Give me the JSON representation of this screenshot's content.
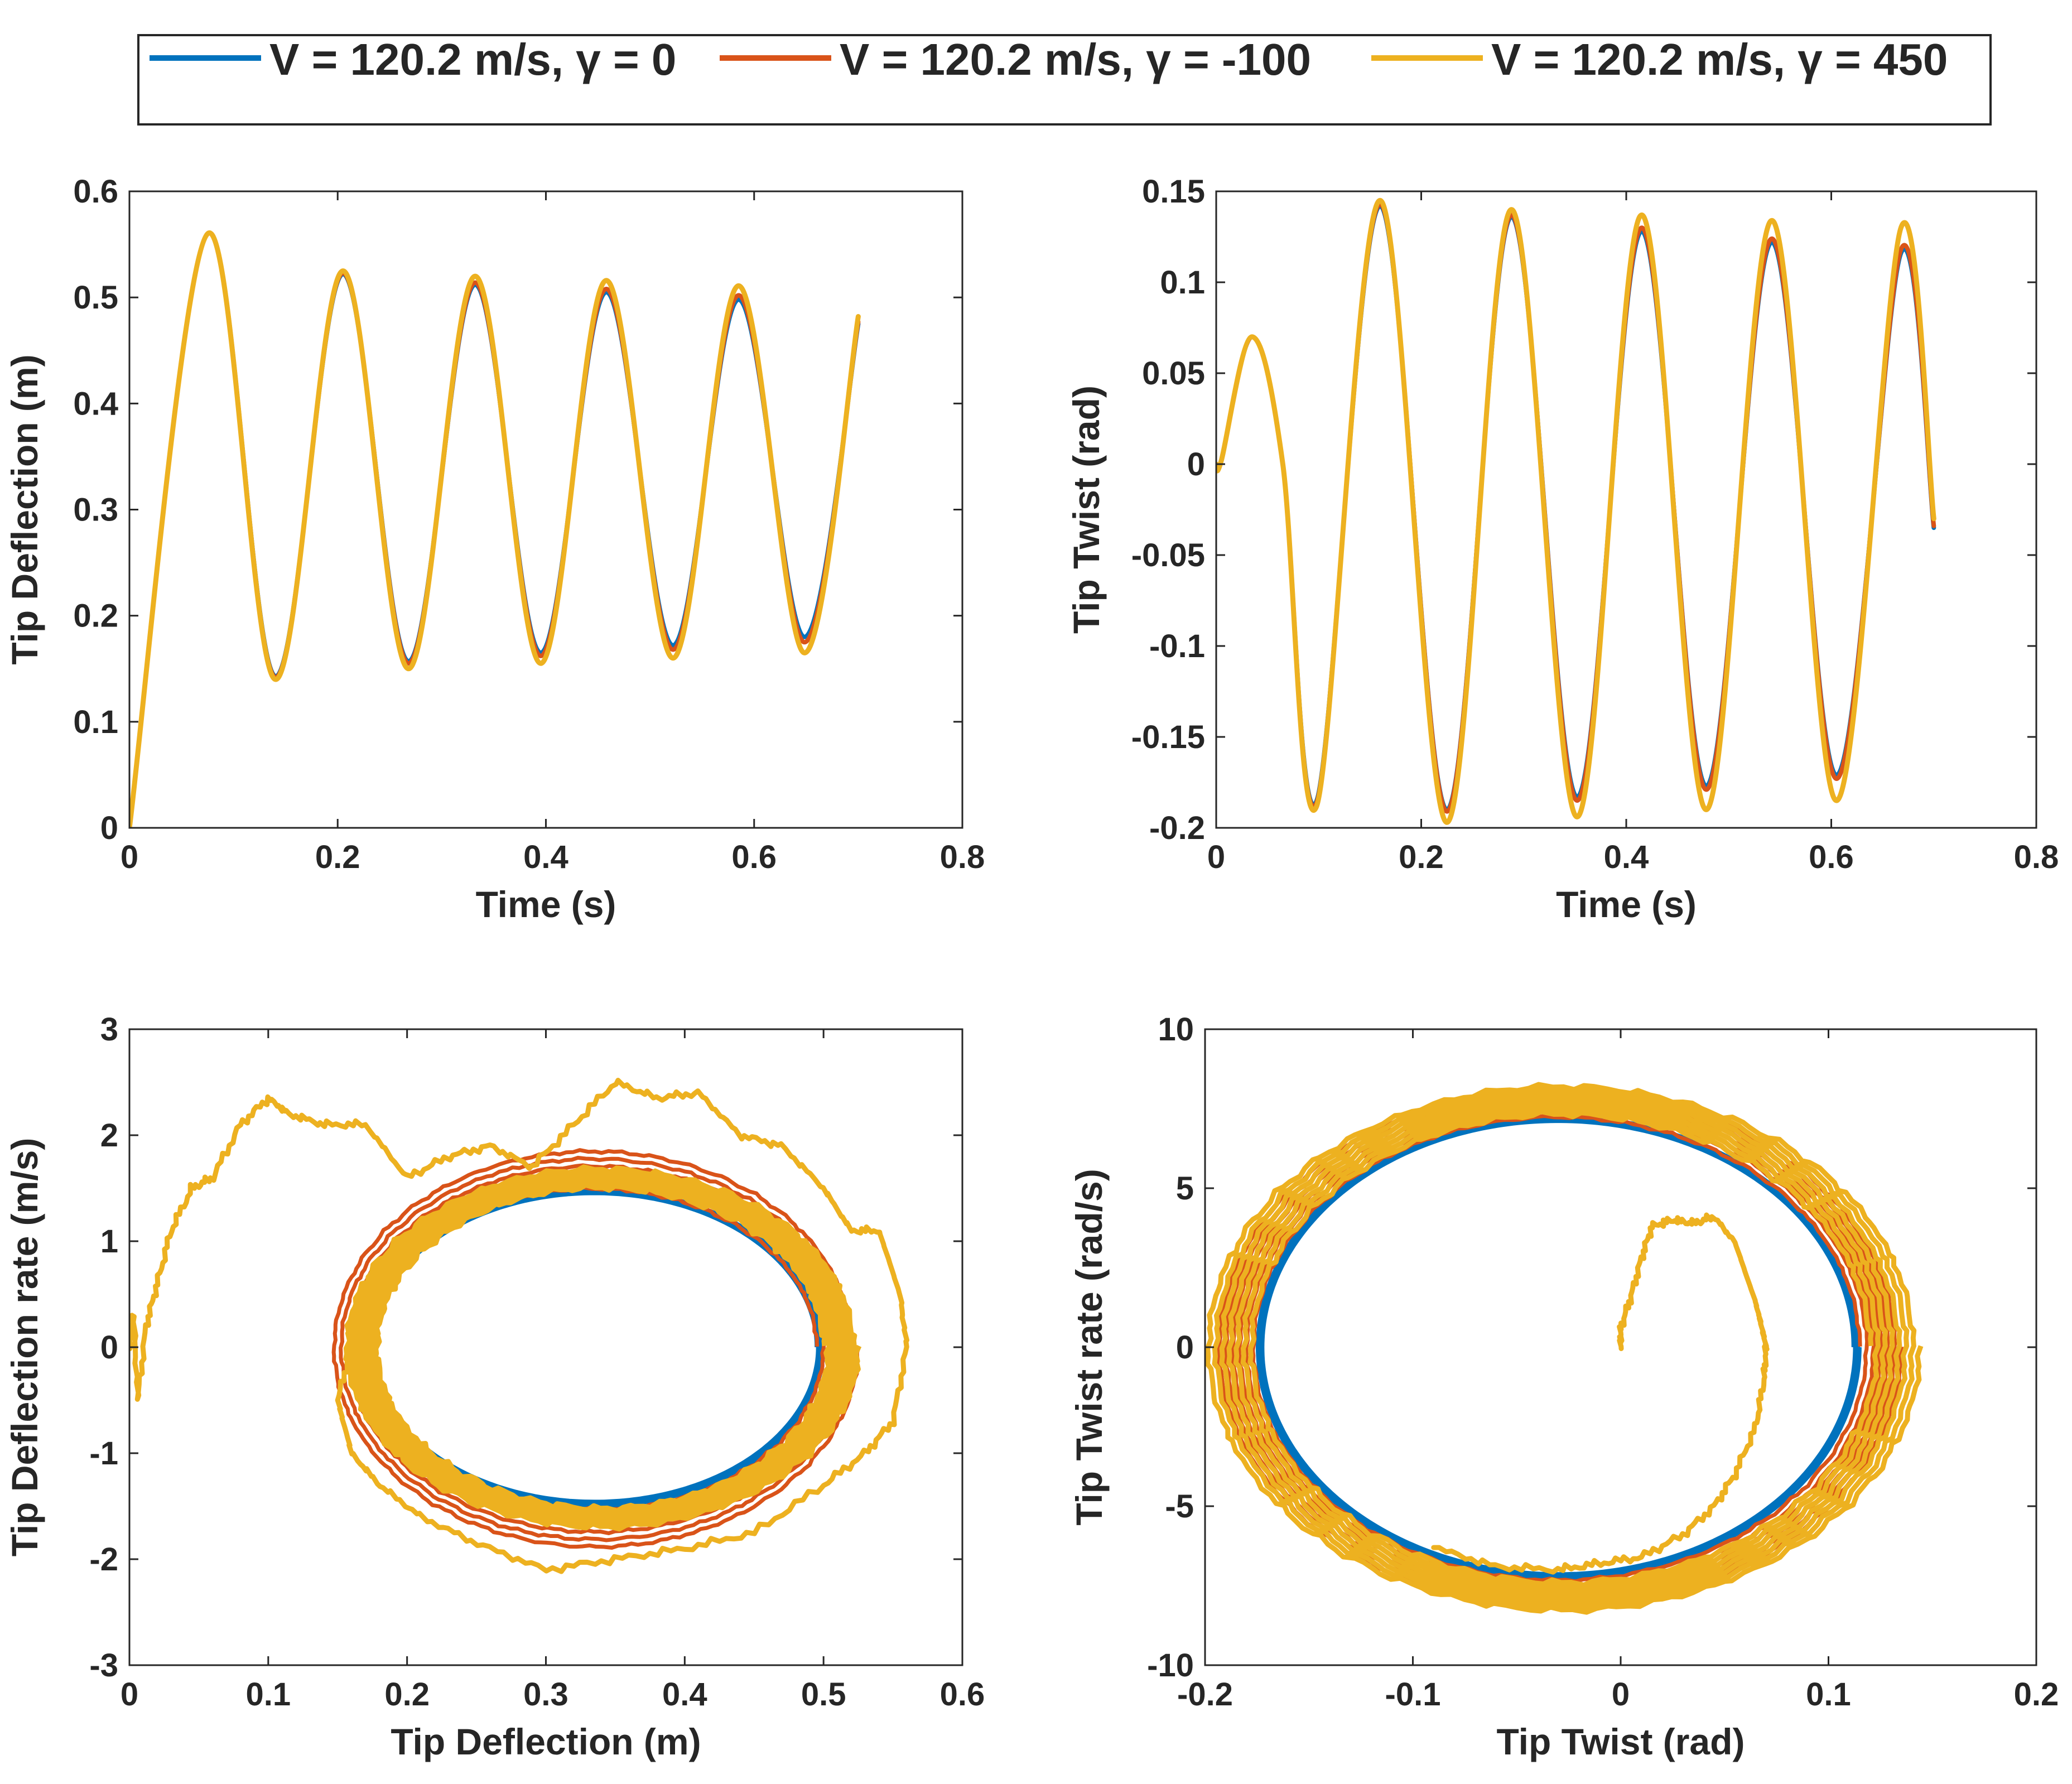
{
  "legend": {
    "entries": [
      {
        "label": "V = 120.2 m/s, γ = 0",
        "color": "#0072BD"
      },
      {
        "label": "V = 120.2 m/s, γ = -100",
        "color": "#D95319"
      },
      {
        "label": "V = 120.2 m/s, γ = 450",
        "color": "#EDB120"
      }
    ]
  },
  "chart_data": [
    {
      "type": "line",
      "name": "tip-deflection-vs-time",
      "xlabel": "Time (s)",
      "ylabel": "Tip Deflection (m)",
      "xlim": [
        0,
        0.8
      ],
      "ylim": [
        0,
        0.6
      ],
      "xticks": [
        0,
        0.2,
        0.4,
        0.6,
        0.8
      ],
      "yticks": [
        0,
        0.1,
        0.2,
        0.3,
        0.4,
        0.5,
        0.6
      ],
      "grid": false,
      "series": [
        {
          "name": "V = 120.2 m/s, γ = 0",
          "color": "#0072BD",
          "x": [
            0,
            0.075,
            0.14,
            0.205,
            0.268,
            0.332,
            0.395,
            0.458,
            0.522,
            0.585,
            0.648,
            0.7
          ],
          "y": [
            0,
            0.56,
            0.143,
            0.522,
            0.157,
            0.512,
            0.165,
            0.505,
            0.172,
            0.498,
            0.18,
            0.475
          ]
        },
        {
          "name": "V = 120.2 m/s, γ = -100",
          "color": "#D95319",
          "x": [
            0,
            0.075,
            0.14,
            0.205,
            0.268,
            0.332,
            0.395,
            0.458,
            0.522,
            0.585,
            0.648,
            0.7
          ],
          "y": [
            0,
            0.56,
            0.142,
            0.523,
            0.155,
            0.514,
            0.162,
            0.508,
            0.168,
            0.502,
            0.175,
            0.477
          ]
        },
        {
          "name": "V = 120.2 m/s, γ = 450",
          "color": "#EDB120",
          "x": [
            0,
            0.075,
            0.14,
            0.205,
            0.268,
            0.332,
            0.395,
            0.458,
            0.522,
            0.585,
            0.648,
            0.7
          ],
          "y": [
            0,
            0.56,
            0.14,
            0.525,
            0.15,
            0.52,
            0.155,
            0.516,
            0.16,
            0.511,
            0.165,
            0.482
          ]
        }
      ]
    },
    {
      "type": "line",
      "name": "tip-twist-vs-time",
      "xlabel": "Time (s)",
      "ylabel": "Tip Twist (rad)",
      "xlim": [
        0,
        0.8
      ],
      "ylim": [
        -0.2,
        0.15
      ],
      "xticks": [
        0,
        0.2,
        0.4,
        0.6,
        0.8
      ],
      "yticks": [
        -0.2,
        -0.15,
        -0.1,
        -0.05,
        0,
        0.05,
        0.1,
        0.15
      ],
      "yticklabels": [
        "-0.2",
        "-0.15",
        "-0.1",
        "-0.05",
        "0",
        "0.05",
        "0.1",
        "0.15"
      ],
      "grid": false,
      "series": [
        {
          "name": "V = 120.2 m/s, γ = 0",
          "color": "#0072BD",
          "x": [
            0,
            0.005,
            0.035,
            0.065,
            0.098,
            0.16,
            0.225,
            0.288,
            0.352,
            0.415,
            0.478,
            0.542,
            0.605,
            0.668,
            0.7
          ],
          "y": [
            0,
            0.002,
            0.07,
            0.0,
            -0.185,
            0.142,
            -0.19,
            0.136,
            -0.183,
            0.128,
            -0.177,
            0.122,
            -0.171,
            0.116,
            -0.035
          ]
        },
        {
          "name": "V = 120.2 m/s, γ = -100",
          "color": "#D95319",
          "x": [
            0,
            0.005,
            0.035,
            0.065,
            0.098,
            0.16,
            0.225,
            0.288,
            0.352,
            0.415,
            0.478,
            0.542,
            0.605,
            0.668,
            0.7
          ],
          "y": [
            0,
            0.002,
            0.07,
            0.0,
            -0.186,
            0.143,
            -0.191,
            0.137,
            -0.185,
            0.13,
            -0.179,
            0.124,
            -0.173,
            0.118,
            -0.034
          ]
        },
        {
          "name": "V = 120.2 m/s, γ = 450",
          "color": "#EDB120",
          "x": [
            0,
            0.005,
            0.035,
            0.065,
            0.098,
            0.16,
            0.225,
            0.288,
            0.352,
            0.415,
            0.478,
            0.542,
            0.605,
            0.668,
            0.7
          ],
          "y": [
            0,
            0.002,
            0.07,
            0.0,
            -0.188,
            0.145,
            -0.197,
            0.14,
            -0.194,
            0.137,
            -0.19,
            0.134,
            -0.185,
            0.13,
            -0.03
          ]
        }
      ]
    },
    {
      "type": "line",
      "name": "tip-deflection-rate-vs-tip-deflection",
      "xlabel": "Tip Deflection (m)",
      "ylabel": "Tip Deflection rate (m/s)",
      "xlim": [
        0,
        0.6
      ],
      "ylim": [
        -3,
        3
      ],
      "xticks": [
        0,
        0.1,
        0.2,
        0.3,
        0.4,
        0.5,
        0.6
      ],
      "yticks": [
        -3,
        -2,
        -1,
        0,
        1,
        2,
        3
      ],
      "grid": false,
      "series": [
        {
          "name": "V = 120.2 m/s, γ = 0",
          "color": "#0072BD",
          "kind": "orbit",
          "center": [
            0.335,
            0
          ],
          "rx": [
            0.165,
            0.16
          ],
          "ry": [
            1.5,
            1.45
          ],
          "loops": 5
        },
        {
          "name": "V = 120.2 m/s, γ = -100",
          "color": "#D95319",
          "kind": "orbit",
          "center": [
            0.335,
            0
          ],
          "rx": [
            0.19,
            0.16
          ],
          "ry": [
            1.9,
            1.48
          ],
          "loops": 6
        },
        {
          "name": "V = 120.2 m/s, γ = 450",
          "color": "#EDB120",
          "x": [
            0,
            0.003,
            0.006,
            0.012,
            0.02,
            0.03,
            0.045,
            0.06,
            0.08,
            0.1,
            0.115,
            0.14,
            0.17,
            0.2,
            0.23,
            0.26,
            0.29,
            0.32,
            0.35,
            0.38,
            0.41,
            0.44,
            0.47,
            0.5,
            0.52,
            0.54,
            0.555,
            0.56,
            0.55,
            0.53,
            0.5,
            0.45,
            0.4,
            0.35,
            0.3,
            0.25,
            0.21,
            0.18,
            0.16,
            0.15,
            0.16
          ],
          "y": [
            0,
            0.3,
            -0.5,
            0.2,
            0.6,
            1.1,
            1.5,
            1.6,
            2.1,
            2.35,
            2.2,
            2.1,
            2.1,
            1.6,
            1.8,
            1.9,
            1.7,
            2.1,
            2.5,
            2.35,
            2.4,
            2.0,
            1.9,
            1.5,
            1.1,
            1.1,
            0.5,
            0.0,
            -0.7,
            -1.0,
            -1.3,
            -1.75,
            -1.9,
            -2.0,
            -2.1,
            -1.85,
            -1.6,
            -1.3,
            -1.0,
            -0.5,
            0
          ],
          "orbit": {
            "center": [
              0.34,
              0
            ],
            "rx": [
              0.185,
              0.16
            ],
            "ry": [
              1.7,
              1.5
            ],
            "loops": 7
          }
        }
      ]
    },
    {
      "type": "line",
      "name": "tip-twist-rate-vs-tip-twist",
      "xlabel": "Tip Twist (rad)",
      "ylabel": "Tip Twist rate (rad/s)",
      "xlim": [
        -0.2,
        0.2
      ],
      "ylim": [
        -10,
        10
      ],
      "xticks": [
        -0.2,
        -0.1,
        0,
        0.1,
        0.2
      ],
      "yticks": [
        -10,
        -5,
        0,
        5,
        10
      ],
      "grid": false,
      "series": [
        {
          "name": "V = 120.2 m/s, γ = 0",
          "color": "#0072BD",
          "kind": "orbit",
          "center": [
            -0.03,
            0
          ],
          "rx": [
            0.145,
            0.142
          ],
          "ry": [
            7.3,
            7.1
          ],
          "loops": 4
        },
        {
          "name": "V = 120.2 m/s, γ = -100",
          "color": "#D95319",
          "kind": "orbit",
          "center": [
            -0.03,
            0
          ],
          "rx": [
            0.165,
            0.145
          ],
          "ry": [
            8.2,
            7.2
          ],
          "loops": 6
        },
        {
          "name": "V = 120.2 m/s, γ = 450",
          "color": "#EDB120",
          "x": [
            0,
            0.0,
            0.005,
            0.01,
            0.015,
            0.025,
            0.035,
            0.045,
            0.055,
            0.065,
            0.068,
            0.07,
            0.069,
            0.065,
            0.055,
            0.045,
            0.03,
            0.01,
            -0.01,
            -0.03,
            -0.06,
            -0.09
          ],
          "y": [
            0,
            0.6,
            1.6,
            2.8,
            3.8,
            4.0,
            3.9,
            4.1,
            3.3,
            1.4,
            0.6,
            0.0,
            -1.0,
            -2.5,
            -4.0,
            -5.0,
            -5.9,
            -6.6,
            -6.8,
            -7.0,
            -6.9,
            -6.3
          ],
          "orbit": {
            "center": [
              -0.028,
              0
            ],
            "rx": [
              0.172,
              0.148
            ],
            "ry": [
              8.3,
              7.3
            ],
            "loops": 7
          }
        }
      ]
    }
  ]
}
